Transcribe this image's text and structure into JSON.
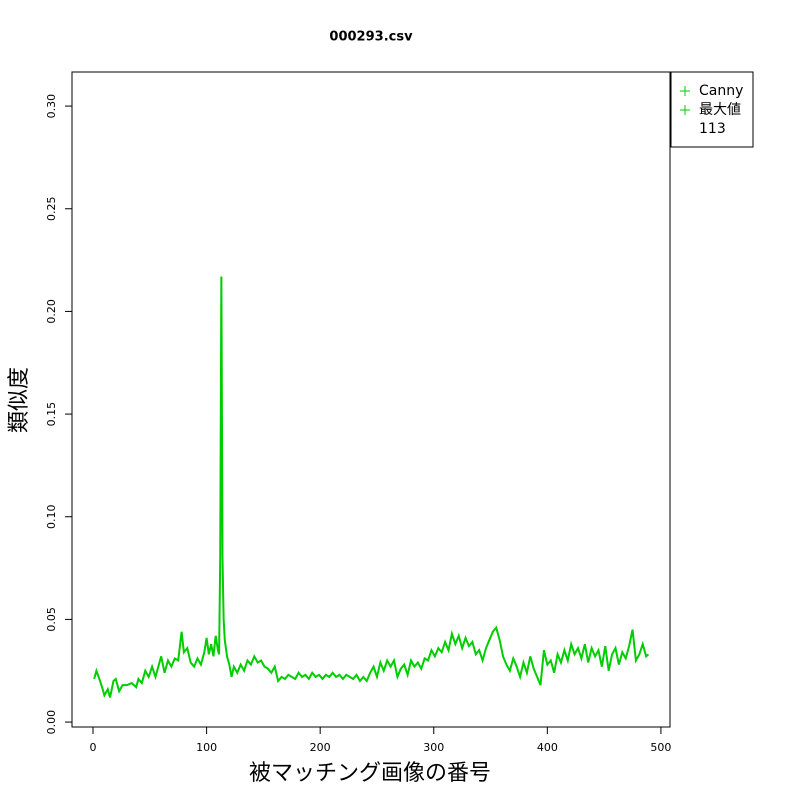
{
  "chart_data": {
    "type": "line",
    "title": "000293.csv",
    "x_label": "被マッチング画像の番号",
    "y_label": "類似度",
    "x": [
      1,
      3,
      5,
      8,
      10,
      13,
      15,
      18,
      20,
      23,
      26,
      30,
      34,
      38,
      40,
      43,
      46,
      49,
      52,
      55,
      58,
      60,
      63,
      66,
      69,
      72,
      75,
      78,
      80,
      83,
      86,
      89,
      92,
      95,
      98,
      100,
      102,
      104,
      106,
      108,
      110,
      111,
      112,
      113,
      114,
      115,
      116,
      118,
      120,
      122,
      124,
      127,
      130,
      133,
      136,
      139,
      142,
      145,
      148,
      151,
      154,
      157,
      160,
      163,
      166,
      169,
      172,
      175,
      178,
      181,
      184,
      187,
      190,
      193,
      196,
      199,
      202,
      205,
      208,
      211,
      214,
      217,
      220,
      223,
      226,
      229,
      232,
      235,
      238,
      241,
      244,
      247,
      250,
      253,
      256,
      259,
      262,
      265,
      268,
      271,
      274,
      277,
      280,
      283,
      286,
      289,
      292,
      295,
      298,
      301,
      304,
      307,
      310,
      313,
      316,
      319,
      322,
      325,
      328,
      331,
      334,
      337,
      340,
      343,
      346,
      349,
      352,
      355,
      358,
      361,
      364,
      367,
      370,
      373,
      376,
      379,
      382,
      385,
      388,
      391,
      394,
      397,
      400,
      403,
      406,
      409,
      412,
      415,
      418,
      421,
      424,
      427,
      430,
      433,
      436,
      439,
      442,
      445,
      448,
      451,
      454,
      457,
      460,
      463,
      466,
      469,
      472,
      475,
      478,
      481,
      484,
      487,
      489
    ],
    "series": [
      {
        "name": "Canny",
        "color": "#00cd00",
        "values": [
          0.021,
          0.025,
          0.022,
          0.017,
          0.013,
          0.016,
          0.012,
          0.02,
          0.021,
          0.015,
          0.018,
          0.018,
          0.019,
          0.017,
          0.021,
          0.019,
          0.025,
          0.022,
          0.027,
          0.022,
          0.028,
          0.032,
          0.024,
          0.03,
          0.027,
          0.031,
          0.03,
          0.044,
          0.034,
          0.036,
          0.029,
          0.027,
          0.031,
          0.028,
          0.034,
          0.041,
          0.033,
          0.038,
          0.032,
          0.042,
          0.035,
          0.033,
          0.08,
          0.217,
          0.08,
          0.05,
          0.04,
          0.032,
          0.028,
          0.022,
          0.027,
          0.024,
          0.028,
          0.025,
          0.03,
          0.028,
          0.032,
          0.029,
          0.03,
          0.027,
          0.026,
          0.024,
          0.027,
          0.02,
          0.022,
          0.021,
          0.023,
          0.022,
          0.021,
          0.024,
          0.022,
          0.023,
          0.021,
          0.024,
          0.022,
          0.023,
          0.021,
          0.023,
          0.022,
          0.024,
          0.022,
          0.023,
          0.021,
          0.023,
          0.022,
          0.021,
          0.023,
          0.02,
          0.022,
          0.02,
          0.024,
          0.027,
          0.022,
          0.029,
          0.025,
          0.03,
          0.027,
          0.03,
          0.022,
          0.026,
          0.028,
          0.023,
          0.03,
          0.027,
          0.029,
          0.026,
          0.031,
          0.03,
          0.035,
          0.032,
          0.036,
          0.034,
          0.039,
          0.035,
          0.043,
          0.038,
          0.042,
          0.036,
          0.041,
          0.037,
          0.039,
          0.033,
          0.035,
          0.03,
          0.036,
          0.04,
          0.044,
          0.046,
          0.04,
          0.032,
          0.028,
          0.025,
          0.031,
          0.027,
          0.022,
          0.029,
          0.024,
          0.032,
          0.026,
          0.022,
          0.018,
          0.035,
          0.028,
          0.03,
          0.024,
          0.033,
          0.029,
          0.035,
          0.03,
          0.038,
          0.033,
          0.036,
          0.031,
          0.038,
          0.029,
          0.036,
          0.032,
          0.035,
          0.027,
          0.037,
          0.025,
          0.033,
          0.036,
          0.028,
          0.034,
          0.031,
          0.037,
          0.045,
          0.03,
          0.033,
          0.038,
          0.032,
          0.033
        ]
      }
    ],
    "max_label": "最大値",
    "max_x": 113,
    "xlim": [
      -18.5,
      508
    ],
    "xticks": [
      0,
      100,
      200,
      300,
      400,
      500
    ],
    "ylim": [
      -0.0024,
      0.3166
    ],
    "yticks": [
      {
        "value": 0,
        "label": "0.00"
      },
      0.05,
      {
        "value": 0.1,
        "label": "0.10"
      },
      0.15,
      {
        "value": 0.2,
        "label": "0.20"
      },
      0.25,
      {
        "value": 0.3,
        "label": "0.30"
      }
    ],
    "legend": "topright"
  }
}
